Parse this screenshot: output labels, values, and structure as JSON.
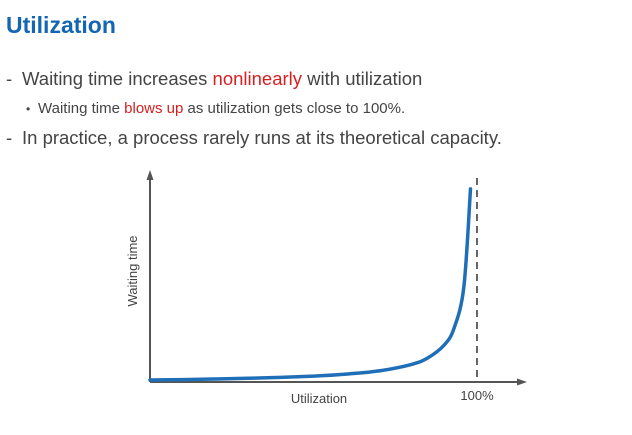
{
  "slide": {
    "title": "Utilization",
    "bullets": [
      {
        "marker": "-",
        "pre": "Waiting time increases ",
        "highlight": "nonlinearly",
        "post": " with utilization"
      },
      {
        "marker": "•",
        "pre": "Waiting time ",
        "highlight": "blows up",
        "post": " as utilization gets close to 100%."
      },
      {
        "marker": "-",
        "pre": "In practice, a process rarely runs at its theoretical capacity.",
        "highlight": "",
        "post": ""
      }
    ]
  },
  "chart_data": {
    "type": "line",
    "xlabel": "Utilization",
    "ylabel": "Waiting time",
    "asymptote_label": "100%",
    "series": [
      {
        "x": [
          0,
          10,
          20,
          30,
          40,
          50,
          60,
          70,
          80,
          85,
          90,
          93,
          96,
          98
        ],
        "y": [
          0,
          0.11,
          0.25,
          0.43,
          0.67,
          1.0,
          1.5,
          2.33,
          4.0,
          5.67,
          9.0,
          13.3,
          24.0,
          49.0
        ]
      }
    ],
    "colors": {
      "line": "#1f6fb8",
      "axis": "#555555",
      "highlight": "#d61f1f",
      "title": "#1466b4"
    }
  }
}
